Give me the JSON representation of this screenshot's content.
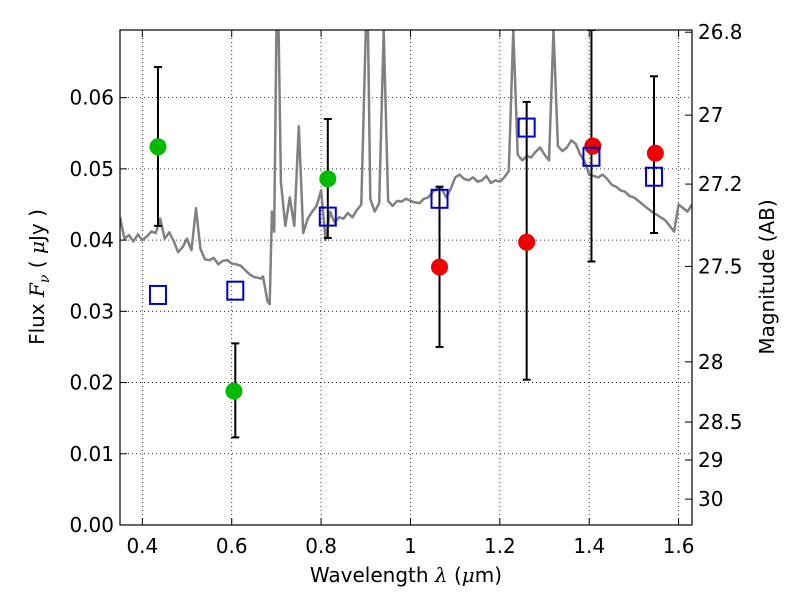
{
  "chart_data": {
    "type": "scatter",
    "xlabel_text": "Wavelength",
    "xlabel_symbol": "λ",
    "xlabel_unit_open": "(",
    "xlabel_unit_mu": "μ",
    "xlabel_unit_rest": "m)",
    "ylabel_text": "Flux",
    "ylabel_symbol": "F",
    "ylabel_sub": "ν",
    "ylabel_unit_open": "(",
    "ylabel_unit_mu": "μ",
    "ylabel_unit_rest": "Jy",
    "ylabel_unit_close": ")",
    "y2label": "Magnitude (AB)",
    "xlim": [
      0.35,
      1.63
    ],
    "ylim": [
      0.0,
      0.0695
    ],
    "grid": true,
    "xticks": [
      {
        "v": 0.4,
        "label": "0.4"
      },
      {
        "v": 0.6,
        "label": "0.6"
      },
      {
        "v": 0.8,
        "label": "0.8"
      },
      {
        "v": 1.0,
        "label": "1"
      },
      {
        "v": 1.2,
        "label": "1.2"
      },
      {
        "v": 1.4,
        "label": "1.4"
      },
      {
        "v": 1.6,
        "label": "1.6"
      }
    ],
    "yticks": [
      {
        "v": 0.0,
        "label": "0.00"
      },
      {
        "v": 0.01,
        "label": "0.01"
      },
      {
        "v": 0.02,
        "label": "0.02"
      },
      {
        "v": 0.03,
        "label": "0.03"
      },
      {
        "v": 0.04,
        "label": "0.04"
      },
      {
        "v": 0.05,
        "label": "0.05"
      },
      {
        "v": 0.06,
        "label": "0.06"
      }
    ],
    "y2ticks": [
      {
        "mag": 26.8,
        "label": "26.8"
      },
      {
        "mag": 27,
        "label": "27"
      },
      {
        "mag": 27.2,
        "label": "27.2"
      },
      {
        "mag": 27.5,
        "label": "27.5"
      },
      {
        "mag": 28,
        "label": "28"
      },
      {
        "mag": 28.5,
        "label": "28.5"
      },
      {
        "mag": 29,
        "label": "29"
      },
      {
        "mag": 30,
        "label": "30"
      }
    ],
    "series": [
      {
        "kind": "line",
        "color": "#808080",
        "x": [
          0.35,
          0.36,
          0.37,
          0.38,
          0.39,
          0.4,
          0.41,
          0.42,
          0.43,
          0.44,
          0.45,
          0.46,
          0.47,
          0.48,
          0.49,
          0.5,
          0.51,
          0.52,
          0.53,
          0.54,
          0.55,
          0.56,
          0.57,
          0.58,
          0.59,
          0.6,
          0.61,
          0.62,
          0.63,
          0.64,
          0.65,
          0.66,
          0.665,
          0.67,
          0.68,
          0.685,
          0.69,
          0.695,
          0.7,
          0.705,
          0.71,
          0.72,
          0.73,
          0.74,
          0.75,
          0.76,
          0.77,
          0.78,
          0.79,
          0.8,
          0.81,
          0.82,
          0.83,
          0.84,
          0.85,
          0.86,
          0.87,
          0.88,
          0.89,
          0.9,
          0.905,
          0.91,
          0.92,
          0.93,
          0.94,
          0.95,
          0.96,
          0.97,
          0.98,
          0.99,
          1.0,
          1.01,
          1.02,
          1.03,
          1.04,
          1.05,
          1.06,
          1.07,
          1.08,
          1.09,
          1.1,
          1.11,
          1.12,
          1.13,
          1.14,
          1.15,
          1.16,
          1.17,
          1.18,
          1.19,
          1.2,
          1.21,
          1.22,
          1.23,
          1.24,
          1.25,
          1.26,
          1.27,
          1.28,
          1.29,
          1.3,
          1.31,
          1.32,
          1.33,
          1.34,
          1.35,
          1.36,
          1.37,
          1.38,
          1.39,
          1.4,
          1.41,
          1.42,
          1.43,
          1.44,
          1.45,
          1.46,
          1.47,
          1.48,
          1.49,
          1.5,
          1.51,
          1.52,
          1.53,
          1.54,
          1.55,
          1.56,
          1.57,
          1.58,
          1.59,
          1.6,
          1.61,
          1.62,
          1.63
        ],
        "y": [
          0.0432,
          0.0402,
          0.0407,
          0.0398,
          0.0408,
          0.04,
          0.0405,
          0.0412,
          0.041,
          0.043,
          0.0402,
          0.0411,
          0.0399,
          0.0383,
          0.039,
          0.0402,
          0.0386,
          0.0445,
          0.0388,
          0.0373,
          0.0372,
          0.0375,
          0.0366,
          0.0371,
          0.0372,
          0.0367,
          0.0366,
          0.0364,
          0.0358,
          0.0352,
          0.0348,
          0.0347,
          0.0346,
          0.0349,
          0.0314,
          0.031,
          0.044,
          0.0412,
          0.0695,
          0.0695,
          0.0482,
          0.042,
          0.046,
          0.042,
          0.056,
          0.041,
          0.043,
          0.044,
          0.0448,
          0.047,
          0.04,
          0.044,
          0.0425,
          0.0432,
          0.043,
          0.0438,
          0.0432,
          0.0442,
          0.045,
          0.0695,
          0.0695,
          0.0458,
          0.044,
          0.0452,
          0.0695,
          0.0455,
          0.0448,
          0.0455,
          0.0454,
          0.0458,
          0.0455,
          0.0453,
          0.0452,
          0.0458,
          0.046,
          0.0468,
          0.0472,
          0.0472,
          0.046,
          0.0472,
          0.0488,
          0.0492,
          0.0486,
          0.0484,
          0.0488,
          0.0482,
          0.0484,
          0.049,
          0.048,
          0.0484,
          0.0482,
          0.0488,
          0.0497,
          0.0695,
          0.052,
          0.0512,
          0.0518,
          0.0516,
          0.0524,
          0.053,
          0.052,
          0.0512,
          0.0695,
          0.0532,
          0.0525,
          0.053,
          0.054,
          0.0535,
          0.052,
          0.051,
          0.0492,
          0.049,
          0.0488,
          0.0492,
          0.0486,
          0.0478,
          0.0475,
          0.047,
          0.0468,
          0.0462,
          0.046,
          0.0455,
          0.045,
          0.0445,
          0.044,
          0.0436,
          0.0432,
          0.0428,
          0.042,
          0.0412,
          0.045,
          0.0445,
          0.044,
          0.045
        ]
      },
      {
        "kind": "errorbar",
        "color": "#000000",
        "bars": [
          {
            "x": 0.435,
            "lo": 0.042,
            "hi": 0.0643
          },
          {
            "x": 0.608,
            "lo": 0.0123,
            "hi": 0.0255
          },
          {
            "x": 0.815,
            "lo": 0.0403,
            "hi": 0.057
          },
          {
            "x": 1.065,
            "lo": 0.025,
            "hi": 0.0475
          },
          {
            "x": 1.26,
            "lo": 0.0204,
            "hi": 0.0594
          },
          {
            "x": 1.405,
            "lo": 0.037,
            "hi": 0.0695
          },
          {
            "x": 1.545,
            "lo": 0.041,
            "hi": 0.063
          }
        ]
      },
      {
        "kind": "marker-circle",
        "color": "#00bb00",
        "points": [
          {
            "x": 0.435,
            "y": 0.0531
          },
          {
            "x": 0.605,
            "y": 0.0188
          },
          {
            "x": 0.815,
            "y": 0.0486
          }
        ]
      },
      {
        "kind": "marker-circle",
        "color": "#ee0000",
        "points": [
          {
            "x": 1.065,
            "y": 0.0362
          },
          {
            "x": 1.26,
            "y": 0.0397
          },
          {
            "x": 1.408,
            "y": 0.0532
          },
          {
            "x": 1.548,
            "y": 0.0522
          }
        ]
      },
      {
        "kind": "marker-square",
        "color": "#0000cc",
        "points": [
          {
            "x": 0.435,
            "y": 0.0323
          },
          {
            "x": 0.608,
            "y": 0.0329
          },
          {
            "x": 0.815,
            "y": 0.0433
          },
          {
            "x": 1.065,
            "y": 0.0458
          },
          {
            "x": 1.26,
            "y": 0.0558
          },
          {
            "x": 1.405,
            "y": 0.0517
          },
          {
            "x": 1.545,
            "y": 0.0489
          }
        ]
      }
    ]
  }
}
